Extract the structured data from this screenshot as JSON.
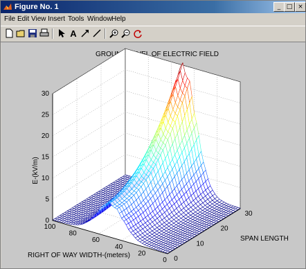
{
  "window": {
    "title": "Figure No. 1",
    "controls": {
      "minimize": "_",
      "maximize": "□",
      "close": "×"
    }
  },
  "menu": {
    "items": [
      {
        "label": "File"
      },
      {
        "label": "Edit"
      },
      {
        "label": "View"
      },
      {
        "label": "Insert"
      },
      {
        "label": "Tools"
      },
      {
        "label": "Window"
      },
      {
        "label": "Help"
      }
    ]
  },
  "toolbar": {
    "icons": [
      "new-file-icon",
      "open-folder-icon",
      "save-icon",
      "print-icon",
      "pointer-icon",
      "text-icon",
      "arrow-icon",
      "line-icon",
      "zoom-in-icon",
      "zoom-out-icon",
      "rotate-icon"
    ],
    "text_tool_glyph": "A"
  },
  "chart_data": {
    "type": "surface",
    "title": "GROUND LEVEL OF ELECTRIC FIELD",
    "xlabel": "SPAN LENGTH",
    "ylabel": "RIGHT OF WAY WIDTH-(meters)",
    "zlabel": "E-(kV/m)",
    "xlim": [
      0,
      30
    ],
    "ylim": [
      0,
      100
    ],
    "zlim": [
      0,
      30
    ],
    "xticks": [
      0,
      10,
      20,
      30
    ],
    "yticks": [
      0,
      20,
      40,
      60,
      80,
      100
    ],
    "zticks": [
      0,
      5,
      10,
      15,
      20,
      25,
      30
    ],
    "peak": {
      "span": 30,
      "width": 50,
      "value": 29
    },
    "colormap": "jet",
    "grid": true
  }
}
